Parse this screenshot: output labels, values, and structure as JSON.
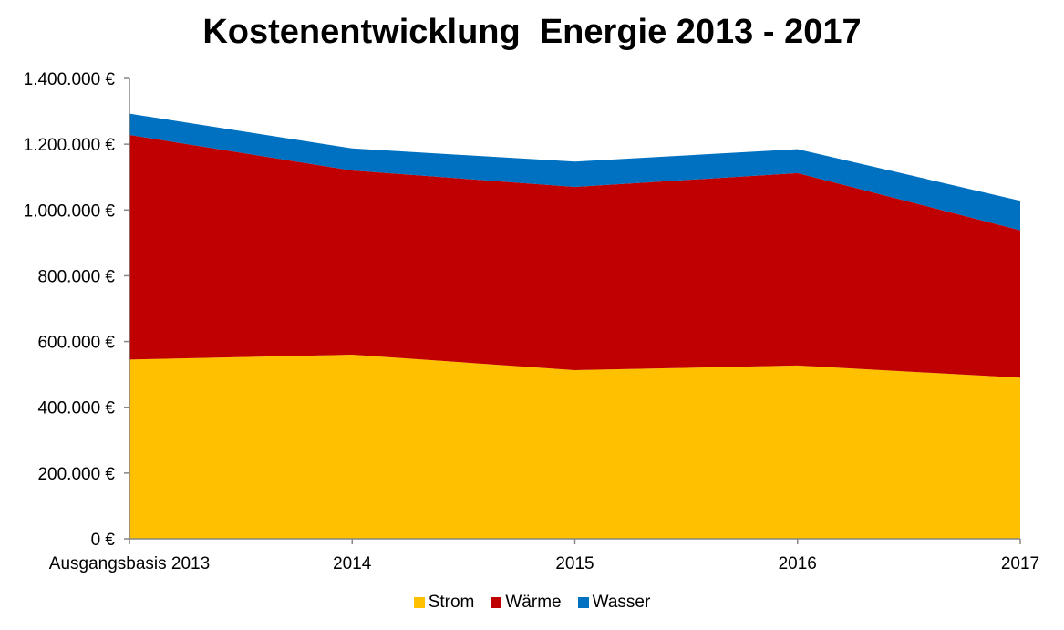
{
  "chart_data": {
    "type": "area",
    "stacked": true,
    "title": "Kostenentwicklung  Energie 2013 - 2017",
    "categories": [
      "Ausgangsbasis 2013",
      "2014",
      "2015",
      "2016",
      "2017"
    ],
    "series": [
      {
        "name": "Strom",
        "color": "#FFC000",
        "values": [
          545000,
          560000,
          513000,
          527000,
          490000
        ]
      },
      {
        "name": "Wärme",
        "color": "#C00000",
        "values": [
          683000,
          560000,
          557000,
          585000,
          448000
        ]
      },
      {
        "name": "Wasser",
        "color": "#0070C0",
        "values": [
          65000,
          67000,
          77000,
          73000,
          90000
        ]
      }
    ],
    "ylim": [
      0,
      1400000
    ],
    "yticks": [
      0,
      200000,
      400000,
      600000,
      800000,
      1000000,
      1200000,
      1400000
    ],
    "ytick_labels": [
      "0 €",
      "200.000 €",
      "400.000 €",
      "600.000 €",
      "800.000 €",
      "1.000.000 €",
      "1.200.000 €",
      "1.400.000 €"
    ],
    "legend_position": "bottom",
    "grid": false
  }
}
